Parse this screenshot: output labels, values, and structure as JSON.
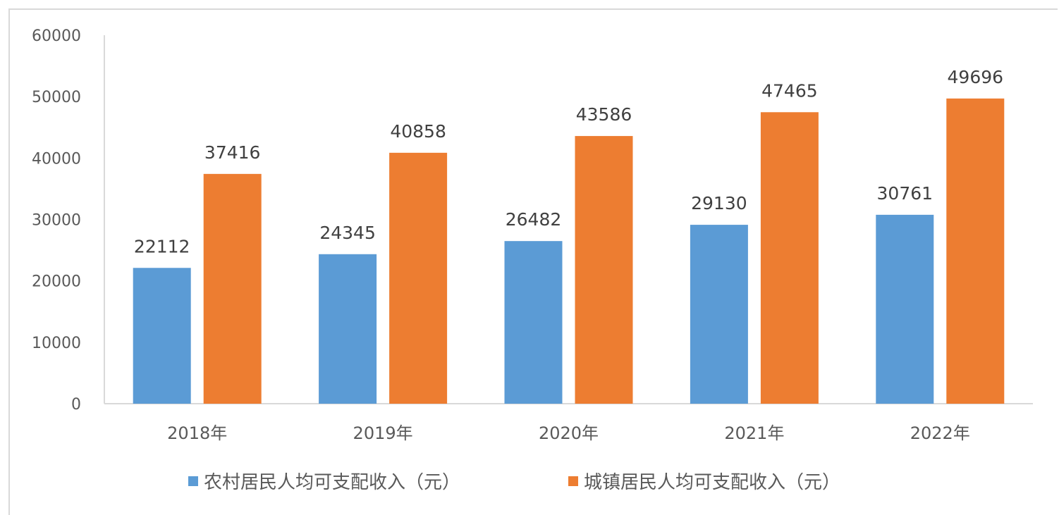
{
  "chart_data": {
    "type": "bar",
    "categories": [
      "2018年",
      "2019年",
      "2020年",
      "2021年",
      "2022年"
    ],
    "series": [
      {
        "name": "农村居民人均可支配收入（元）",
        "color": "#5b9bd5",
        "values": [
          22112,
          24345,
          26482,
          29130,
          30761
        ]
      },
      {
        "name": "城镇居民人均可支配收入（元）",
        "color": "#ed7d31",
        "values": [
          37416,
          40858,
          43586,
          47465,
          49696
        ]
      }
    ],
    "ylim": [
      0,
      60000
    ],
    "yticks": [
      0,
      10000,
      20000,
      30000,
      40000,
      50000,
      60000
    ],
    "grid": false,
    "legend": "bottom"
  }
}
